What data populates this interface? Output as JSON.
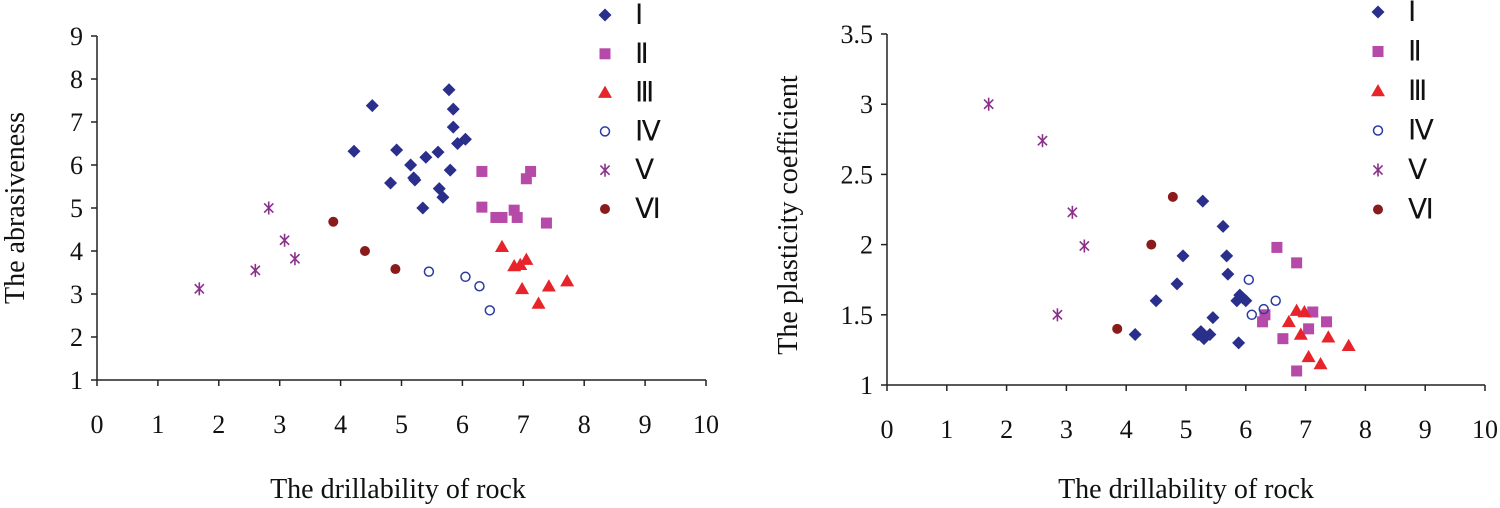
{
  "chart_data": [
    {
      "type": "scatter",
      "xlabel": "The drillability of rock",
      "ylabel": "The abrasiveness",
      "xlim": [
        0,
        10
      ],
      "ylim": [
        1,
        9
      ],
      "xticks": [
        "0",
        "1",
        "2",
        "3",
        "4",
        "5",
        "6",
        "7",
        "8",
        "9",
        "10"
      ],
      "yticks": [
        "1",
        "2",
        "3",
        "4",
        "5",
        "6",
        "7",
        "8",
        "9"
      ],
      "grid": false,
      "legend_position": "top-right",
      "series": [
        {
          "name": "Ⅰ",
          "marker": "diamond",
          "color": "#2b2f8c",
          "points": [
            [
              4.22,
              6.32
            ],
            [
              4.52,
              7.38
            ],
            [
              4.82,
              5.58
            ],
            [
              4.92,
              6.35
            ],
            [
              5.15,
              6.0
            ],
            [
              5.2,
              5.7
            ],
            [
              5.22,
              5.65
            ],
            [
              5.35,
              5.0
            ],
            [
              5.4,
              6.18
            ],
            [
              5.6,
              6.3
            ],
            [
              5.62,
              5.45
            ],
            [
              5.68,
              5.25
            ],
            [
              5.78,
              7.75
            ],
            [
              5.8,
              5.88
            ],
            [
              5.85,
              7.3
            ],
            [
              5.85,
              6.88
            ],
            [
              5.92,
              6.5
            ],
            [
              6.05,
              6.6
            ]
          ]
        },
        {
          "name": "Ⅱ",
          "marker": "square",
          "color": "#b64aa8",
          "points": [
            [
              6.32,
              5.85
            ],
            [
              6.32,
              5.02
            ],
            [
              6.55,
              4.78
            ],
            [
              6.65,
              4.78
            ],
            [
              6.85,
              4.95
            ],
            [
              6.9,
              4.78
            ],
            [
              7.05,
              5.68
            ],
            [
              7.12,
              5.85
            ],
            [
              7.38,
              4.65
            ]
          ]
        },
        {
          "name": "Ⅲ",
          "marker": "triangle",
          "color": "#e8242b",
          "points": [
            [
              6.65,
              4.1
            ],
            [
              6.85,
              3.65
            ],
            [
              6.95,
              3.68
            ],
            [
              7.05,
              3.8
            ],
            [
              6.98,
              3.12
            ],
            [
              7.25,
              2.78
            ],
            [
              7.42,
              3.18
            ],
            [
              7.72,
              3.3
            ]
          ]
        },
        {
          "name": "Ⅳ",
          "marker": "circle-open",
          "color": "#2b3aa0",
          "points": [
            [
              5.45,
              3.52
            ],
            [
              6.05,
              3.4
            ],
            [
              6.28,
              3.18
            ],
            [
              6.45,
              2.62
            ]
          ]
        },
        {
          "name": "Ⅴ",
          "marker": "asterisk",
          "color": "#8b2f8c",
          "points": [
            [
              1.68,
              3.12
            ],
            [
              2.6,
              3.55
            ],
            [
              2.82,
              5.0
            ],
            [
              3.08,
              4.25
            ],
            [
              3.25,
              3.82
            ]
          ]
        },
        {
          "name": "Ⅵ",
          "marker": "circle",
          "color": "#8b1a1a",
          "points": [
            [
              3.88,
              4.68
            ],
            [
              4.4,
              4.0
            ],
            [
              4.9,
              3.58
            ]
          ]
        }
      ]
    },
    {
      "type": "scatter",
      "xlabel": "The drillability of rock",
      "ylabel": "The plasticity coefficient",
      "xlim": [
        0,
        10
      ],
      "ylim": [
        1,
        3.5
      ],
      "xticks": [
        "0",
        "1",
        "2",
        "3",
        "4",
        "5",
        "6",
        "7",
        "8",
        "9",
        "10"
      ],
      "yticks": [
        "1",
        "1.5",
        "2",
        "2.5",
        "3",
        "3.5"
      ],
      "grid": false,
      "legend_position": "top-right",
      "series": [
        {
          "name": "Ⅰ",
          "marker": "diamond",
          "color": "#2b2f8c",
          "points": [
            [
              4.15,
              1.36
            ],
            [
              4.5,
              1.6
            ],
            [
              4.85,
              1.72
            ],
            [
              4.95,
              1.92
            ],
            [
              5.2,
              1.36
            ],
            [
              5.25,
              1.38
            ],
            [
              5.28,
              2.31
            ],
            [
              5.3,
              1.33
            ],
            [
              5.4,
              1.36
            ],
            [
              5.45,
              1.48
            ],
            [
              5.62,
              2.13
            ],
            [
              5.68,
              1.92
            ],
            [
              5.7,
              1.79
            ],
            [
              5.85,
              1.6
            ],
            [
              5.88,
              1.3
            ],
            [
              5.9,
              1.64
            ],
            [
              5.95,
              1.62
            ],
            [
              6.0,
              1.6
            ]
          ]
        },
        {
          "name": "Ⅱ",
          "marker": "square",
          "color": "#b64aa8",
          "points": [
            [
              6.28,
              1.45
            ],
            [
              6.32,
              1.5
            ],
            [
              6.52,
              1.98
            ],
            [
              6.62,
              1.33
            ],
            [
              6.85,
              1.87
            ],
            [
              6.85,
              1.1
            ],
            [
              7.05,
              1.4
            ],
            [
              7.12,
              1.52
            ],
            [
              7.35,
              1.45
            ]
          ]
        },
        {
          "name": "Ⅲ",
          "marker": "triangle",
          "color": "#e8242b",
          "points": [
            [
              6.72,
              1.45
            ],
            [
              6.85,
              1.53
            ],
            [
              6.92,
              1.36
            ],
            [
              6.98,
              1.52
            ],
            [
              7.05,
              1.2
            ],
            [
              7.25,
              1.15
            ],
            [
              7.38,
              1.34
            ],
            [
              7.72,
              1.28
            ]
          ]
        },
        {
          "name": "Ⅳ",
          "marker": "circle-open",
          "color": "#2b3aa0",
          "points": [
            [
              6.05,
              1.75
            ],
            [
              6.1,
              1.5
            ],
            [
              6.3,
              1.54
            ],
            [
              6.5,
              1.6
            ]
          ]
        },
        {
          "name": "Ⅴ",
          "marker": "asterisk",
          "color": "#8b2f8c",
          "points": [
            [
              1.7,
              3.0
            ],
            [
              2.6,
              2.74
            ],
            [
              3.1,
              2.23
            ],
            [
              3.3,
              1.99
            ],
            [
              2.85,
              1.5
            ]
          ]
        },
        {
          "name": "Ⅵ",
          "marker": "circle",
          "color": "#8b1a1a",
          "points": [
            [
              3.85,
              1.4
            ],
            [
              4.42,
              2.0
            ],
            [
              4.78,
              2.34
            ]
          ]
        }
      ]
    }
  ]
}
